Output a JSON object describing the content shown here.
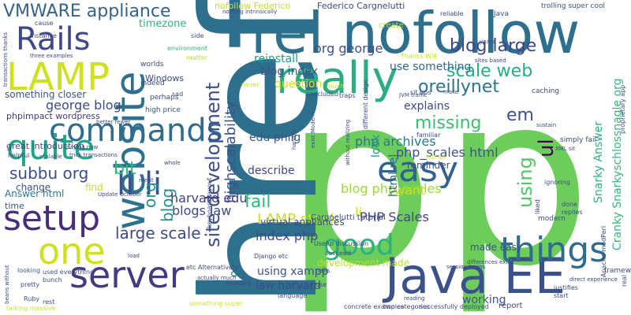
{
  "words": [
    {
      "text": "p",
      "color": "#6ccd5a"
    },
    {
      "text": "p",
      "color": "#6ccd5a"
    },
    {
      "text": "href",
      "color": "#2e6f8e"
    },
    {
      "text": "rel nofollow",
      "color": "#2e6f8e"
    },
    {
      "text": "really",
      "color": "#29af7f"
    },
    {
      "text": "Java EE",
      "color": "#3b518b"
    },
    {
      "text": "website",
      "color": "#2d718e"
    },
    {
      "text": "things",
      "color": "#2f6c8e"
    },
    {
      "text": "server",
      "color": "#443983"
    },
    {
      "text": "LAMP",
      "color": "#cde11d"
    },
    {
      "text": "commands",
      "color": "#2f6c8e"
    },
    {
      "text": "easy",
      "color": "#33638d"
    },
    {
      "text": "good",
      "color": "#2db27d"
    },
    {
      "text": "setup",
      "color": "#472d7b"
    },
    {
      "text": "one",
      "color": "#cde11d"
    },
    {
      "text": "quite",
      "color": "#21a585"
    },
    {
      "text": "li li",
      "color": "#3b528b"
    },
    {
      "text": "Rails",
      "color": "#3f4889"
    },
    {
      "text": "VMWARE appliance",
      "color": "#33638d"
    },
    {
      "text": "site development",
      "color": "#3d4d8a"
    },
    {
      "text": "highscalability",
      "color": "#3b528b"
    },
    {
      "text": "blog large",
      "color": "#3f4788"
    },
    {
      "text": "scale web",
      "color": "#27ad81"
    },
    {
      "text": "oreillynet",
      "color": "#2c738e"
    },
    {
      "text": "missing",
      "color": "#3fbc73"
    },
    {
      "text": "em",
      "color": "#3b518b"
    },
    {
      "text": "org george",
      "color": "#3c4f8a"
    },
    {
      "text": "blog index",
      "color": "#3b528b"
    },
    {
      "text": "reinstall",
      "color": "#1f9a8a"
    },
    {
      "text": "question",
      "color": "#d8e219"
    },
    {
      "text": "use something",
      "color": "#32658e"
    },
    {
      "text": "george blog",
      "color": "#3e4c8a"
    },
    {
      "text": "subbu org",
      "color": "#3c4f8a"
    },
    {
      "text": "blog",
      "color": "#21918c"
    },
    {
      "text": "org",
      "color": "#21918c"
    },
    {
      "text": "bit",
      "color": "#2fb47c"
    },
    {
      "text": "edu philg",
      "color": "#38588c"
    },
    {
      "text": "php archives",
      "color": "#2a778e"
    },
    {
      "text": "ul",
      "color": "#440154"
    },
    {
      "text": "using",
      "color": "#52c569"
    },
    {
      "text": "php_scales html",
      "color": "#3b528b"
    },
    {
      "text": "describe",
      "color": "#3e4989"
    },
    {
      "text": "blog php_scales",
      "color": "#9bd93c"
    },
    {
      "text": "harvard edu",
      "color": "#433e85"
    },
    {
      "text": "blogs law",
      "color": "#3e4a89"
    },
    {
      "text": "fail",
      "color": "#35b779"
    },
    {
      "text": "LAMP stack",
      "color": "#c2df23"
    },
    {
      "text": "PHP Scales",
      "color": "#414487"
    },
    {
      "text": "large scale",
      "color": "#3e4a89"
    },
    {
      "text": "onlamp",
      "color": "#2a788e"
    },
    {
      "text": "index php",
      "color": "#3e4989"
    },
    {
      "text": "using xampp",
      "color": "#3b528b"
    },
    {
      "text": "law harvard",
      "color": "#3e4989"
    },
    {
      "text": "want",
      "color": "#cde11d"
    },
    {
      "text": "li",
      "color": "#cde11d"
    },
    {
      "text": "working",
      "color": "#3b528b"
    },
    {
      "text": "Snarky Answer",
      "color": "#2db27d"
    },
    {
      "text": "Cranky Snarkyschlossnagle org",
      "color": "#35b779"
    },
    {
      "text": "reminder",
      "color": "#3b528b"
    },
    {
      "text": "html rel",
      "color": "#31688e"
    },
    {
      "text": "look",
      "color": "#21918c"
    },
    {
      "text": "explains",
      "color": "#3e4989"
    },
    {
      "text": "made easy",
      "color": "#3b528b"
    },
    {
      "text": "development made",
      "color": "#b8de29"
    },
    {
      "text": "virtual appliances",
      "color": "#3e4989"
    },
    {
      "text": "Answer html",
      "color": "#2a788e"
    },
    {
      "text": "something closer",
      "color": "#3b528b"
    },
    {
      "text": "phpimpact wordpress",
      "color": "#453882"
    },
    {
      "text": "great introduction",
      "color": "#3e4989"
    },
    {
      "text": "nofollow Federico",
      "color": "#c2df23"
    },
    {
      "text": "Federico Cargnelutti",
      "color": "#3e4989"
    },
    {
      "text": "Cargnelutti tutorial",
      "color": "#3e4989"
    },
    {
      "text": "timezone",
      "color": "#2db27d"
    },
    {
      "text": "Windows",
      "color": "#3e4989"
    },
    {
      "text": "find",
      "color": "#cde11d"
    },
    {
      "text": "change",
      "color": "#3b528b"
    },
    {
      "text": "time",
      "color": "#3b528b"
    },
    {
      "text": "trolling super cool",
      "color": "#3b528b"
    },
    {
      "text": "Java",
      "color": "#3b528b"
    },
    {
      "text": "create",
      "color": "#b8de29"
    },
    {
      "text": "reliable",
      "color": "#3e4989"
    },
    {
      "text": "high price",
      "color": "#3b528b"
    },
    {
      "text": "perhaps",
      "color": "#3e4989"
    },
    {
      "text": "indeed",
      "color": "#3e4989"
    },
    {
      "text": "worlds",
      "color": "#3e4989"
    },
    {
      "text": "matter",
      "color": "#b8de29"
    },
    {
      "text": "environment",
      "color": "#2db27d"
    },
    {
      "text": "side",
      "color": "#3e4989"
    },
    {
      "text": "cause",
      "color": "#3e4989"
    },
    {
      "text": "instance",
      "color": "#3e4989"
    },
    {
      "text": "helpful",
      "color": "#3b528b"
    },
    {
      "text": "looking",
      "color": "#3b528b"
    },
    {
      "text": "used everything",
      "color": "#3b528b"
    },
    {
      "text": "pretty",
      "color": "#3e4989"
    },
    {
      "text": "bunch",
      "color": "#3e4989"
    },
    {
      "text": "Ruby",
      "color": "#3b528b"
    },
    {
      "text": "rest",
      "color": "#3e4989"
    },
    {
      "text": "talking massive",
      "color": "#cde11d"
    },
    {
      "text": "something super",
      "color": "#cde11d"
    },
    {
      "text": "keyboard layout",
      "color": "#3e4989"
    },
    {
      "text": "Update October",
      "color": "#3e4989"
    },
    {
      "text": "load",
      "color": "#3e4989"
    },
    {
      "text": "merit",
      "color": "#3e4989"
    },
    {
      "text": "whole",
      "color": "#3e4989"
    },
    {
      "text": "sad",
      "color": "#3e4989"
    },
    {
      "text": "never",
      "color": "#cde11d"
    },
    {
      "text": "handful",
      "color": "#3e4989"
    },
    {
      "text": "concluded",
      "color": "#3e4989"
    },
    {
      "text": "traps",
      "color": "#3e4989"
    },
    {
      "text": "Useful discussion",
      "color": "#3e4989"
    },
    {
      "text": "succeed",
      "color": "#3e4989"
    },
    {
      "text": "Django etc",
      "color": "#3e4989"
    },
    {
      "text": "avoided",
      "color": "#3e4989"
    },
    {
      "text": "nails",
      "color": "#3e4989"
    },
    {
      "text": "use",
      "color": "#3e4989"
    },
    {
      "text": "language",
      "color": "#3e4989"
    },
    {
      "text": "concrete examples",
      "color": "#3e4989"
    },
    {
      "text": "two categories",
      "color": "#3e4989"
    },
    {
      "text": "successfully deployed",
      "color": "#3e4989"
    },
    {
      "text": "report",
      "color": "#3e4989"
    },
    {
      "text": "justifies",
      "color": "#3e4989"
    },
    {
      "text": "start",
      "color": "#3e4989"
    },
    {
      "text": "frameworks",
      "color": "#3e4989"
    },
    {
      "text": "real",
      "color": "#3e4989"
    },
    {
      "text": "Apache modPerl",
      "color": "#3e4989"
    },
    {
      "text": "modern",
      "color": "#3e4989"
    },
    {
      "text": "done",
      "color": "#3e4989"
    },
    {
      "text": "replies",
      "color": "#3e4989"
    },
    {
      "text": "simply fail",
      "color": "#3e4989"
    },
    {
      "text": "XML sit",
      "color": "#3e4989"
    },
    {
      "text": "sustain",
      "color": "#3e4989"
    },
    {
      "text": "ignoring",
      "color": "#3e4989"
    },
    {
      "text": "liked",
      "color": "#cde11d"
    },
    {
      "text": "hot air",
      "color": "#3e4989"
    },
    {
      "text": "familiar",
      "color": "#3e4989"
    },
    {
      "text": "proprietary app",
      "color": "#3e4989"
    },
    {
      "text": "caching",
      "color": "#3e4989"
    },
    {
      "text": "sit ups",
      "color": "#3e4989"
    },
    {
      "text": "make",
      "color": "#cde11d"
    },
    {
      "text": "Thanks Will",
      "color": "#3e4989"
    },
    {
      "text": "sites based",
      "color": "#3e4989"
    },
    {
      "text": "different design",
      "color": "#3e4989"
    },
    {
      "text": "without realizing",
      "color": "#3e4989"
    },
    {
      "text": "exist Modern",
      "color": "#3e4989"
    },
    {
      "text": "years",
      "color": "#3e4989"
    },
    {
      "text": "nothing intrinsically",
      "color": "#3e4989"
    },
    {
      "text": "transactions thanks",
      "color": "#3e4989"
    },
    {
      "text": "three examples",
      "color": "#3e4989"
    },
    {
      "text": "better fewer",
      "color": "#3e4989"
    },
    {
      "text": "paying now",
      "color": "#3e4989"
    },
    {
      "text": "scalable",
      "color": "#3e4989"
    },
    {
      "text": "trick transactions",
      "color": "#3e4989"
    },
    {
      "text": "etc Alternatively",
      "color": "#3e4989"
    },
    {
      "text": "actually much",
      "color": "#3e4989"
    },
    {
      "text": "differences exist",
      "color": "#3e4989"
    },
    {
      "text": "direct experience",
      "color": "#3e4989"
    },
    {
      "text": "beans without",
      "color": "#3e4989"
    },
    {
      "text": "session beans",
      "color": "#3e4989"
    },
    {
      "text": "JVM traffic",
      "color": "#3e4989"
    },
    {
      "text": "reading",
      "color": "#cde11d"
    },
    {
      "text": "much",
      "color": "#3e4989"
    }
  ]
}
